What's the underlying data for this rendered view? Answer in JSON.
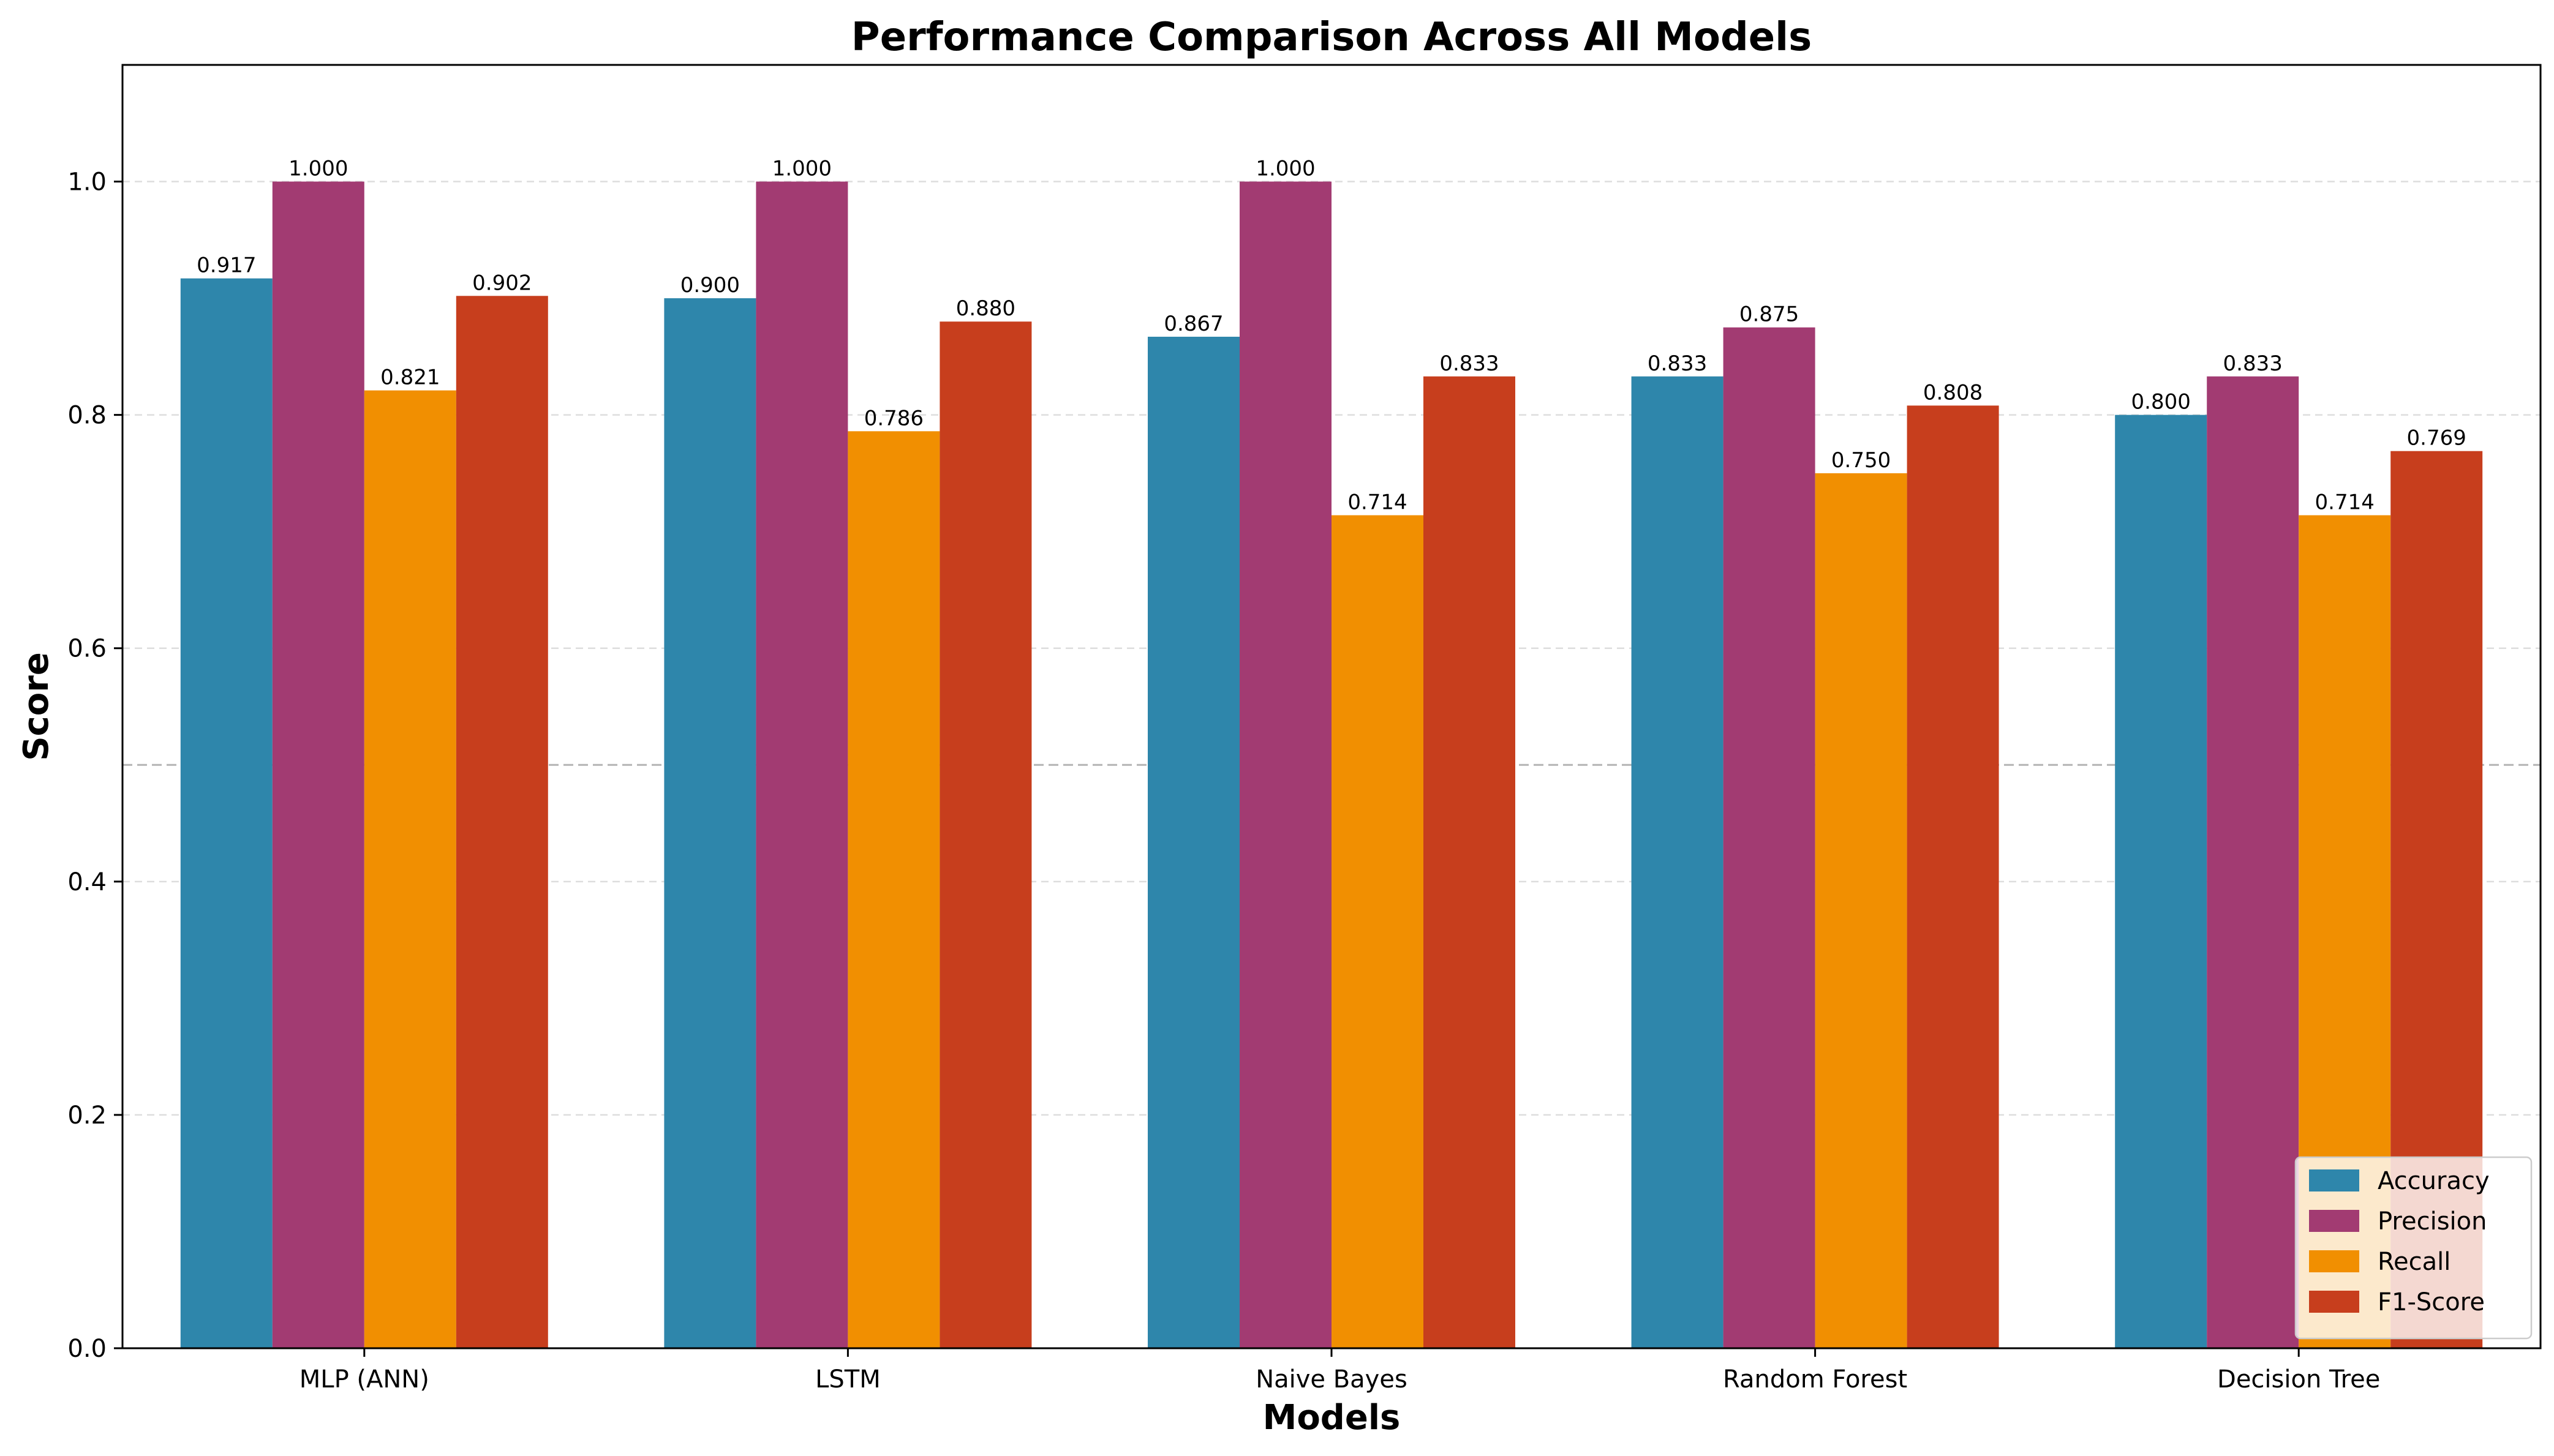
{
  "chart_data": {
    "type": "bar",
    "title": "Performance Comparison Across All Models",
    "xlabel": "Models",
    "ylabel": "Score",
    "categories": [
      "MLP (ANN)",
      "LSTM",
      "Naive Bayes",
      "Random Forest",
      "Decision Tree"
    ],
    "series": [
      {
        "name": "Accuracy",
        "color": "#2E86AB",
        "values": [
          0.917,
          0.9,
          0.867,
          0.833,
          0.8
        ],
        "labels": [
          "0.917",
          "0.900",
          "0.867",
          "0.833",
          "0.800"
        ]
      },
      {
        "name": "Precision",
        "color": "#A23B72",
        "values": [
          1.0,
          1.0,
          1.0,
          0.875,
          0.833
        ],
        "labels": [
          "1.000",
          "1.000",
          "1.000",
          "0.875",
          "0.833"
        ]
      },
      {
        "name": "Recall",
        "color": "#F18F01",
        "values": [
          0.821,
          0.786,
          0.714,
          0.75,
          0.714
        ],
        "labels": [
          "0.821",
          "0.786",
          "0.714",
          "0.750",
          "0.714"
        ]
      },
      {
        "name": "F1-Score",
        "color": "#C73E1D",
        "values": [
          0.902,
          0.88,
          0.833,
          0.808,
          0.769
        ],
        "labels": [
          "0.902",
          "0.880",
          "0.833",
          "0.808",
          "0.769"
        ]
      }
    ],
    "ylim": [
      0,
      1.1
    ],
    "yticks": [
      0.0,
      0.2,
      0.4,
      0.6,
      0.8,
      1.0
    ],
    "ytick_labels": [
      "0.0",
      "0.2",
      "0.4",
      "0.6",
      "0.8",
      "1.0"
    ],
    "reference_line": 0.5,
    "grid": "y-dashed",
    "legend_position": "lower-right"
  }
}
